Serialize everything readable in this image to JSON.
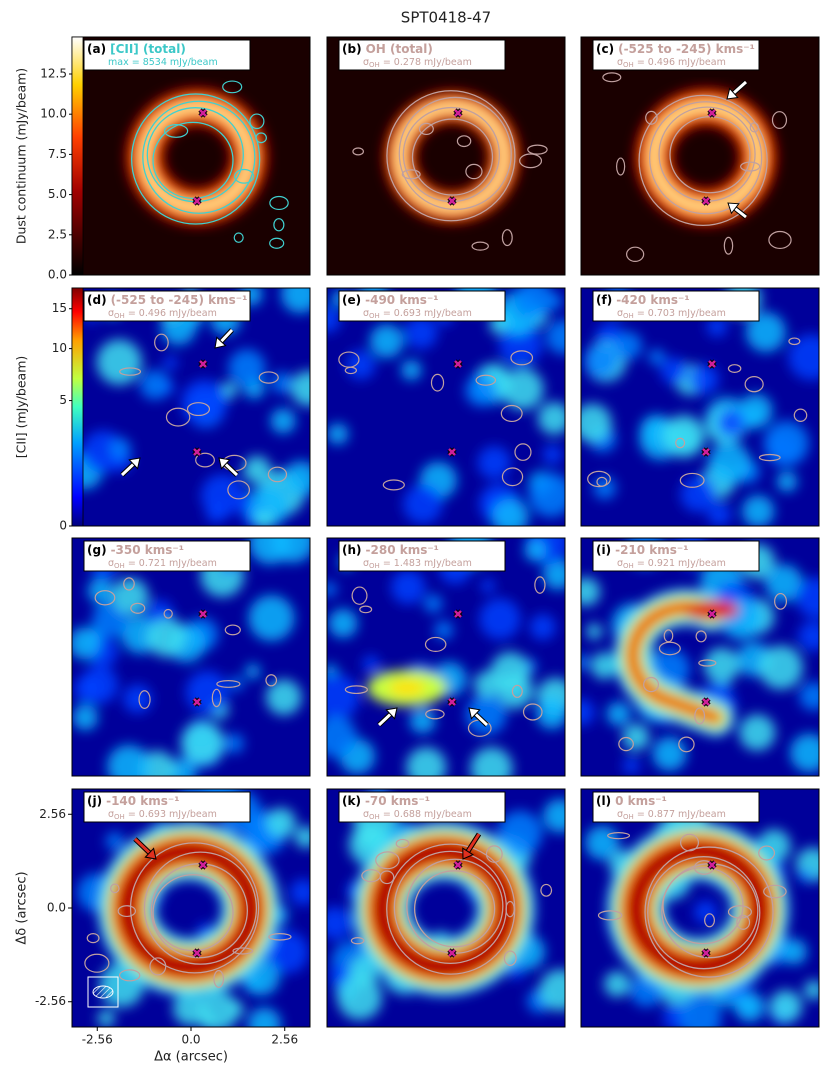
{
  "title": "SPT0418-47",
  "colorbars": [
    {
      "label": "Dust continuum (mJy/beam)",
      "lim": [
        0,
        14.8
      ],
      "scale": "linear",
      "ticks": [
        {
          "value": 0,
          "label": "0.0"
        },
        2.5,
        {
          "value": 5,
          "label": "5.0"
        },
        7.5,
        {
          "value": 10,
          "label": "10.0"
        },
        12.5
      ]
    },
    {
      "label": "[CII] (mJy/beam)",
      "lim": [
        0,
        18
      ],
      "scale": "sqrt",
      "ticks": [
        0,
        5,
        10,
        15
      ]
    }
  ],
  "axes": {
    "xlabel": "Δα (arcsec)",
    "ylabel": "Δδ (arcsec)",
    "lim": [
      -3.25,
      3.25
    ],
    "ticks": [
      -2.56,
      {
        "value": 0,
        "label": "0.0"
      },
      2.56
    ]
  },
  "panels": [
    {
      "id": "(a)",
      "label": "[CII] (total)",
      "color": "#3cc8c8",
      "note": "max = 8534 mJy/beam"
    },
    {
      "id": "(b)",
      "label": "OH (total)",
      "color": "#c4a09c",
      "note_symbol": "σ",
      "note_sub": "OH",
      "note": "= 0.278 mJy/beam"
    },
    {
      "id": "(c)",
      "label": "(-525 to -245) kms⁻¹",
      "color": "#c4a09c",
      "note_symbol": "σ",
      "note_sub": "OH",
      "note": "= 0.496 mJy/beam"
    },
    {
      "id": "(d)",
      "label": "(-525 to -245) kms⁻¹",
      "color": "#c4a09c",
      "note_symbol": "σ",
      "note_sub": "OH",
      "note": "= 0.496 mJy/beam"
    },
    {
      "id": "(e)",
      "label": "-490 kms⁻¹",
      "color": "#c4a09c",
      "note_symbol": "σ",
      "note_sub": "OH",
      "note": "= 0.693 mJy/beam"
    },
    {
      "id": "(f)",
      "label": "-420 kms⁻¹",
      "color": "#c4a09c",
      "note_symbol": "σ",
      "note_sub": "OH",
      "note": "= 0.703 mJy/beam"
    },
    {
      "id": "(g)",
      "label": "-350 kms⁻¹",
      "color": "#c4a09c",
      "note_symbol": "σ",
      "note_sub": "OH",
      "note": "= 0.721 mJy/beam"
    },
    {
      "id": "(h)",
      "label": "-280 kms⁻¹",
      "color": "#c4a09c",
      "note_symbol": "σ",
      "note_sub": "OH",
      "note": "= 1.483 mJy/beam"
    },
    {
      "id": "(i)",
      "label": "-210 kms⁻¹",
      "color": "#c4a09c",
      "note_symbol": "σ",
      "note_sub": "OH",
      "note": "= 0.921 mJy/beam"
    },
    {
      "id": "(j)",
      "label": "-140 kms⁻¹",
      "color": "#c4a09c",
      "note_symbol": "σ",
      "note_sub": "OH",
      "note": "= 0.693 mJy/beam"
    },
    {
      "id": "(k)",
      "label": "-70 kms⁻¹",
      "color": "#c4a09c",
      "note_symbol": "σ",
      "note_sub": "OH",
      "note": "= 0.688 mJy/beam"
    },
    {
      "id": "(l)",
      "label": "0 kms⁻¹",
      "color": "#c4a09c",
      "note_symbol": "σ",
      "note_sub": "OH",
      "note": "= 0.877 mJy/beam"
    }
  ]
}
